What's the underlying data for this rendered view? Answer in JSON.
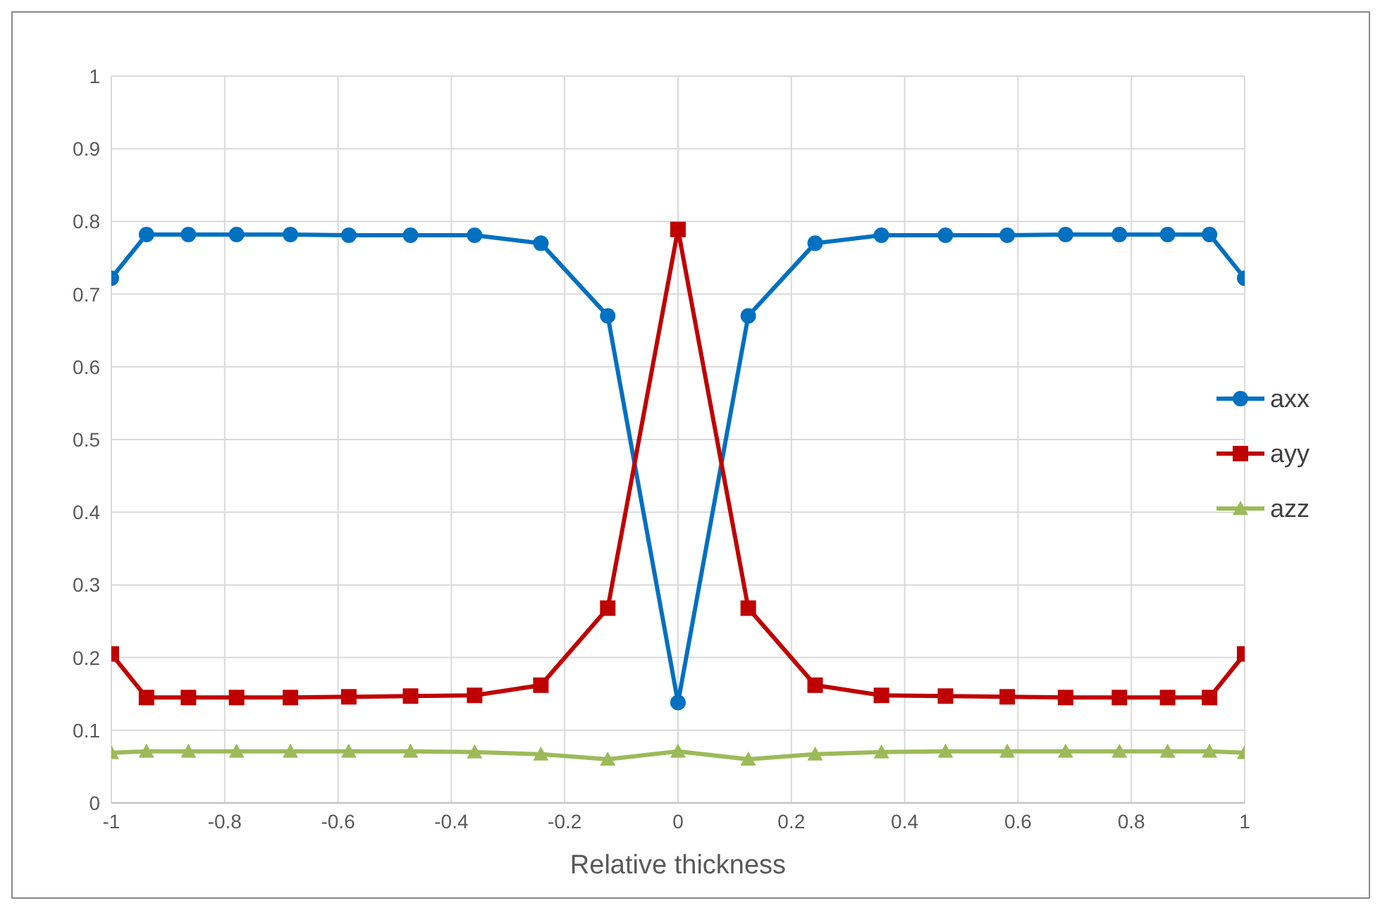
{
  "chart_data": {
    "type": "line",
    "xlabel": "Relative thickness",
    "x": [
      -1,
      -0.938,
      -0.864,
      -0.779,
      -0.684,
      -0.581,
      -0.472,
      -0.359,
      -0.242,
      -0.124,
      0,
      0.124,
      0.242,
      0.359,
      0.472,
      0.581,
      0.684,
      0.779,
      0.864,
      0.938,
      1
    ],
    "series": [
      {
        "name": "axx",
        "color": "#0070c0",
        "marker": "circle",
        "values": [
          0.722,
          0.782,
          0.782,
          0.782,
          0.782,
          0.781,
          0.781,
          0.781,
          0.77,
          0.67,
          0.138,
          0.67,
          0.77,
          0.781,
          0.781,
          0.781,
          0.782,
          0.782,
          0.782,
          0.782,
          0.722
        ]
      },
      {
        "name": "ayy",
        "color": "#c00000",
        "marker": "square",
        "values": [
          0.205,
          0.145,
          0.145,
          0.145,
          0.145,
          0.146,
          0.147,
          0.148,
          0.162,
          0.268,
          0.789,
          0.268,
          0.162,
          0.148,
          0.147,
          0.146,
          0.145,
          0.145,
          0.145,
          0.145,
          0.205
        ]
      },
      {
        "name": "azz",
        "color": "#9bbb59",
        "marker": "triangle",
        "values": [
          0.069,
          0.071,
          0.071,
          0.071,
          0.071,
          0.071,
          0.071,
          0.07,
          0.067,
          0.06,
          0.071,
          0.06,
          0.067,
          0.07,
          0.071,
          0.071,
          0.071,
          0.071,
          0.071,
          0.071,
          0.069
        ]
      }
    ],
    "xlim": [
      -1,
      1
    ],
    "xticks": [
      -1,
      -0.8,
      -0.6,
      -0.4,
      -0.2,
      0,
      0.2,
      0.4,
      0.6,
      0.8,
      1
    ],
    "ylim": [
      0,
      1
    ],
    "yticks": [
      0,
      0.1,
      0.2,
      0.3,
      0.4,
      0.5,
      0.6,
      0.7,
      0.8,
      0.9,
      1
    ],
    "grid": true,
    "legend": "right",
    "line_style": "solid"
  }
}
